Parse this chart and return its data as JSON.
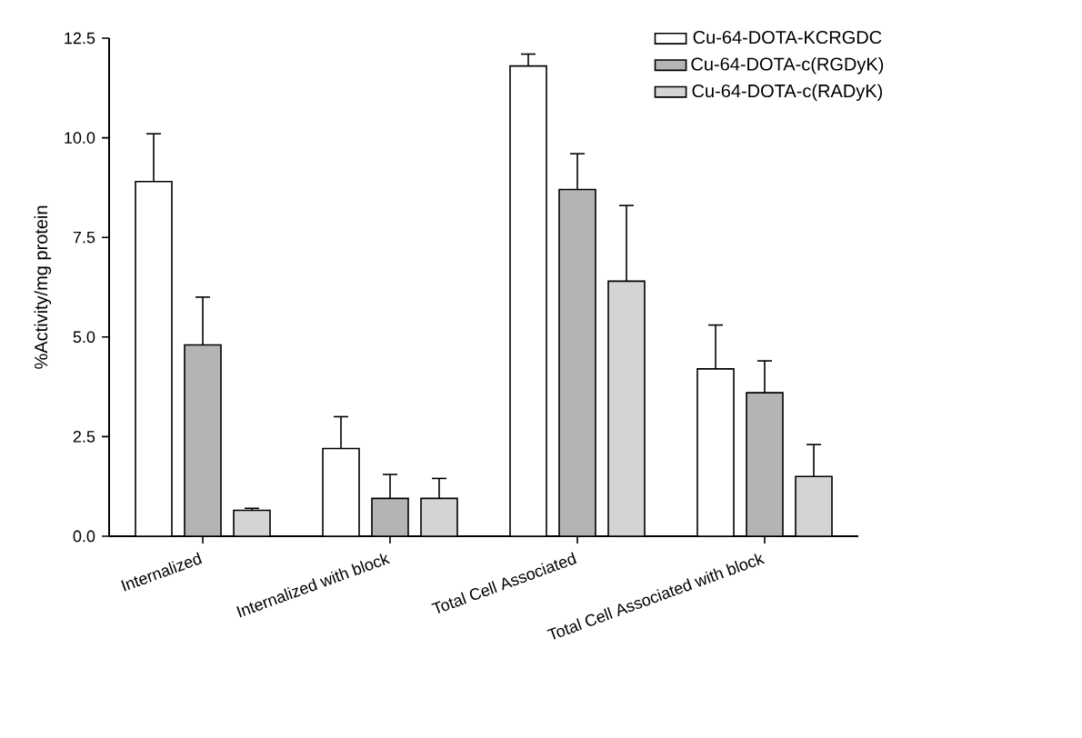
{
  "chart_data": {
    "type": "bar",
    "ylabel": "%Activity/mg protein",
    "categories": [
      "Internalized",
      "Internalized with block",
      "Total Cell Associated",
      "Total Cell Associated with block"
    ],
    "series": [
      {
        "name": "Cu-64-DOTA-KCRGDC",
        "color": "#ffffff",
        "values": [
          8.9,
          2.2,
          11.8,
          4.2
        ],
        "errors": [
          1.2,
          0.8,
          0.3,
          1.1
        ]
      },
      {
        "name": "Cu-64-DOTA-c(RGDyK)",
        "color": "#b4b4b4",
        "values": [
          4.8,
          0.95,
          8.7,
          3.6
        ],
        "errors": [
          1.2,
          0.6,
          0.9,
          0.8
        ]
      },
      {
        "name": "Cu-64-DOTA-c(RADyK)",
        "color": "#d4d4d4",
        "values": [
          0.65,
          0.95,
          6.4,
          1.5
        ],
        "errors": [
          0.05,
          0.5,
          1.9,
          0.8
        ]
      }
    ],
    "ylim": [
      0,
      12.5
    ],
    "yticks": [
      {
        "value": 0,
        "label": "0.0"
      },
      {
        "value": 2.5,
        "label": "2.5"
      },
      {
        "value": 5,
        "label": "5.0"
      },
      {
        "value": 7.5,
        "label": "7.5"
      },
      {
        "value": 10,
        "label": "10.0"
      },
      {
        "value": 12.5,
        "label": "12.5"
      }
    ],
    "grid": false,
    "legend": "top right"
  }
}
